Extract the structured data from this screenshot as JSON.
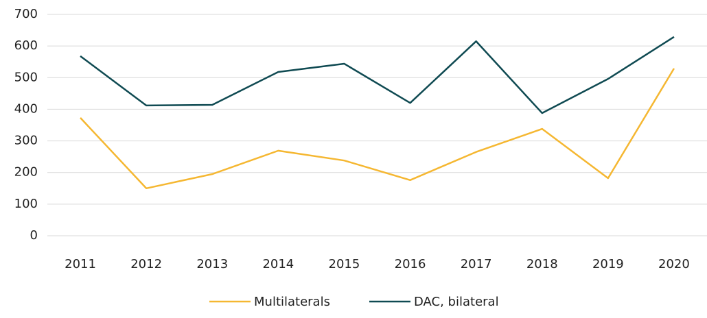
{
  "chart_data": {
    "type": "line",
    "categories": [
      "2011",
      "2012",
      "2013",
      "2014",
      "2015",
      "2016",
      "2017",
      "2018",
      "2019",
      "2020"
    ],
    "series": [
      {
        "name": "Multilaterals",
        "color": "#f5b731",
        "values": [
          373,
          150,
          195,
          269,
          238,
          176,
          265,
          338,
          182,
          529
        ]
      },
      {
        "name": "DAC, bilateral",
        "color": "#0f4a52",
        "values": [
          568,
          412,
          414,
          518,
          544,
          420,
          615,
          388,
          496,
          629
        ]
      }
    ],
    "ylim": [
      0,
      700
    ],
    "yticks": [
      0,
      100,
      200,
      300,
      400,
      500,
      600,
      700
    ],
    "grid": true,
    "legend": "bottom"
  }
}
